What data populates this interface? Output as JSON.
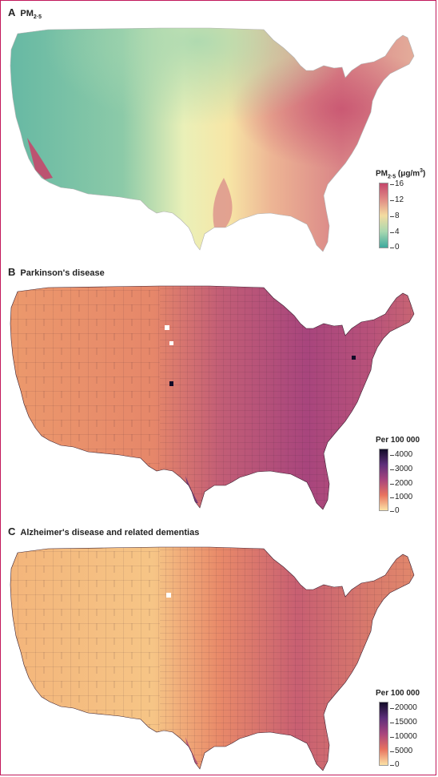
{
  "panels": [
    {
      "letter": "A",
      "title_main": "PM",
      "title_sub": "2·5",
      "legend": {
        "label_main": "PM",
        "label_sub": "2·5",
        "label_unit": " (μg/m",
        "label_sup": "3",
        "label_close": ")",
        "ticks": [
          "16",
          "12",
          "8",
          "4",
          "0"
        ],
        "colors": [
          "#c4476b",
          "#e08b85",
          "#f3dca0",
          "#a9d8b0",
          "#3ea99e"
        ]
      }
    },
    {
      "letter": "B",
      "title_main": "Parkinson's disease",
      "legend": {
        "label": "Per 100 000",
        "ticks": [
          "4000",
          "3000",
          "2000",
          "1000",
          "0"
        ],
        "colors": [
          "#120c28",
          "#5e2f7a",
          "#a8457d",
          "#e8735f",
          "#fbe2a6"
        ]
      }
    },
    {
      "letter": "C",
      "title_main": "Alzheimer's disease and related dementias",
      "legend": {
        "label": "Per 100 000",
        "ticks": [
          "20000",
          "15000",
          "10000",
          "5000",
          "0"
        ],
        "colors": [
          "#120c28",
          "#5e2f7a",
          "#a8457d",
          "#e8735f",
          "#fbe2a6"
        ]
      }
    }
  ]
}
